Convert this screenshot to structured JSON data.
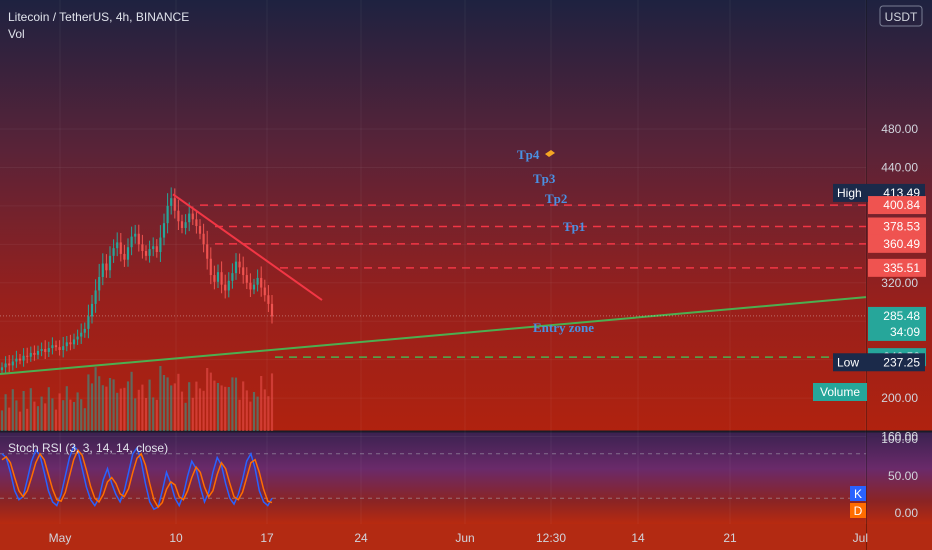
{
  "header": {
    "symbol_line": "Litecoin / TetherUS, 4h, BINANCE",
    "volume_label": "Vol",
    "currency": "USDT"
  },
  "colors": {
    "up": "#26a69a",
    "down": "#ef5350",
    "trendline_down": "#f23645",
    "trendline_up": "#4caf50",
    "target_line": "#f23645",
    "entry_line": "#4caf50",
    "label_blue": "#4a90e2",
    "stoch_k": "#2962ff",
    "stoch_d": "#ff6d00"
  },
  "chart_data": [
    {
      "type": "candlestick",
      "title": "Litecoin / TetherUS, 4h, BINANCE",
      "x_ticks": [
        "May",
        "10",
        "17",
        "24",
        "Jun",
        "12:30",
        "14",
        "21",
        "Jul"
      ],
      "y_ticks": [
        160,
        200,
        240,
        280,
        320,
        360,
        400,
        440,
        480
      ],
      "y_tick_labels": [
        "160.00",
        "200.00",
        "240.00",
        "280.00",
        "320.00",
        "360.00",
        "400.00",
        "440.00",
        "480.00"
      ],
      "ylim": [
        145,
        520
      ],
      "close_series": [
        232,
        236,
        234,
        238,
        241,
        239,
        244,
        243,
        247,
        245,
        249,
        251,
        248,
        252,
        255,
        253,
        250,
        254,
        258,
        256,
        261,
        264,
        268,
        272,
        285,
        298,
        312,
        326,
        340,
        333,
        348,
        356,
        362,
        350,
        344,
        357,
        368,
        371,
        360,
        353,
        348,
        355,
        358,
        352,
        367,
        382,
        400,
        408,
        395,
        384,
        377,
        383,
        392,
        386,
        379,
        371,
        360,
        345,
        328,
        321,
        331,
        318,
        312,
        322,
        330,
        342,
        336,
        328,
        320,
        313,
        318,
        325,
        315,
        307,
        298,
        285
      ],
      "price_levels": [
        {
          "label": "High",
          "value": 413.49,
          "value_text": "413.49"
        },
        {
          "label": "",
          "value": 400.84,
          "value_text": "400.84"
        },
        {
          "label": "",
          "value": 378.53,
          "value_text": "378.53"
        },
        {
          "label": "",
          "value": 360.49,
          "value_text": "360.49"
        },
        {
          "label": "",
          "value": 335.51,
          "value_text": "335.51"
        },
        {
          "label": "",
          "value": 285.48,
          "value_text": "285.48",
          "sub_text": "34:09"
        },
        {
          "label": "",
          "value": 242.58,
          "value_text": "242.58"
        },
        {
          "label": "Low",
          "value": 237.25,
          "value_text": "237.25"
        }
      ],
      "annotations": [
        "Tp4",
        "Tp3",
        "Tp2",
        "Tp1",
        "Entry zone"
      ],
      "volume_legend": "Volume"
    },
    {
      "type": "line",
      "title": "Stoch RSI (3, 3, 14, 14, close)",
      "y_ticks": [
        0,
        50,
        100
      ],
      "y_tick_labels": [
        "0.00",
        "50.00",
        "100.00"
      ],
      "ylim": [
        -15,
        110
      ],
      "series": [
        {
          "name": "K",
          "values": [
            80,
            75,
            55,
            30,
            18,
            22,
            45,
            70,
            85,
            78,
            55,
            30,
            15,
            10,
            25,
            50,
            75,
            90,
            85,
            60,
            35,
            18,
            10,
            20,
            45,
            60,
            40,
            25,
            15,
            30,
            55,
            80,
            88,
            70,
            40,
            15,
            5,
            8,
            30,
            55,
            40,
            20,
            10,
            25,
            50,
            70,
            60,
            35,
            15,
            28,
            55,
            75,
            65,
            40,
            20,
            12,
            25,
            45,
            70,
            80,
            60,
            30,
            15,
            10,
            20
          ]
        },
        {
          "name": "D",
          "values": [
            72,
            76,
            68,
            48,
            30,
            22,
            30,
            48,
            68,
            80,
            72,
            52,
            32,
            18,
            16,
            28,
            50,
            72,
            85,
            78,
            58,
            36,
            20,
            15,
            25,
            42,
            48,
            40,
            26,
            22,
            33,
            55,
            74,
            80,
            65,
            40,
            18,
            8,
            14,
            32,
            42,
            38,
            22,
            18,
            30,
            48,
            62,
            55,
            35,
            22,
            30,
            52,
            68,
            60,
            40,
            22,
            18,
            28,
            48,
            68,
            72,
            55,
            32,
            16,
            14
          ]
        }
      ],
      "legend": [
        "K",
        "D"
      ]
    }
  ]
}
